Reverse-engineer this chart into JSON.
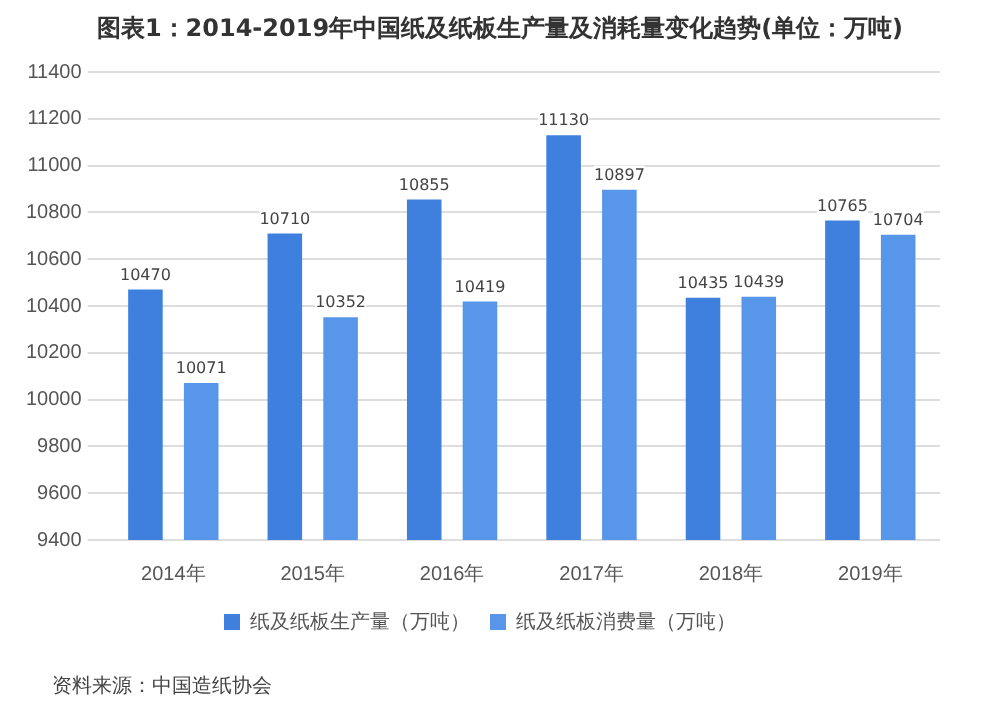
{
  "chart_data": {
    "type": "bar",
    "title": "图表1：2014-2019年中国纸及纸板生产量及消耗量变化趋势(单位：万吨)",
    "categories": [
      "2014年",
      "2015年",
      "2016年",
      "2017年",
      "2018年",
      "2019年"
    ],
    "series": [
      {
        "name": "纸及纸板生产量（万吨）",
        "color": "#3f80df",
        "values": [
          10470,
          10710,
          10855,
          11130,
          10435,
          10765
        ]
      },
      {
        "name": "纸及纸板消费量（万吨）",
        "color": "#5796e8",
        "values": [
          10071,
          10352,
          10419,
          10897,
          10439,
          10704
        ]
      }
    ],
    "ylim": [
      9400,
      11400
    ],
    "yticks": [
      9400,
      9600,
      9800,
      10000,
      10200,
      10400,
      10600,
      10800,
      11000,
      11200,
      11400
    ],
    "grid": "y",
    "legend": "bottom",
    "data_labels": true,
    "annotations": [
      "资料来源：中国造纸协会"
    ]
  }
}
